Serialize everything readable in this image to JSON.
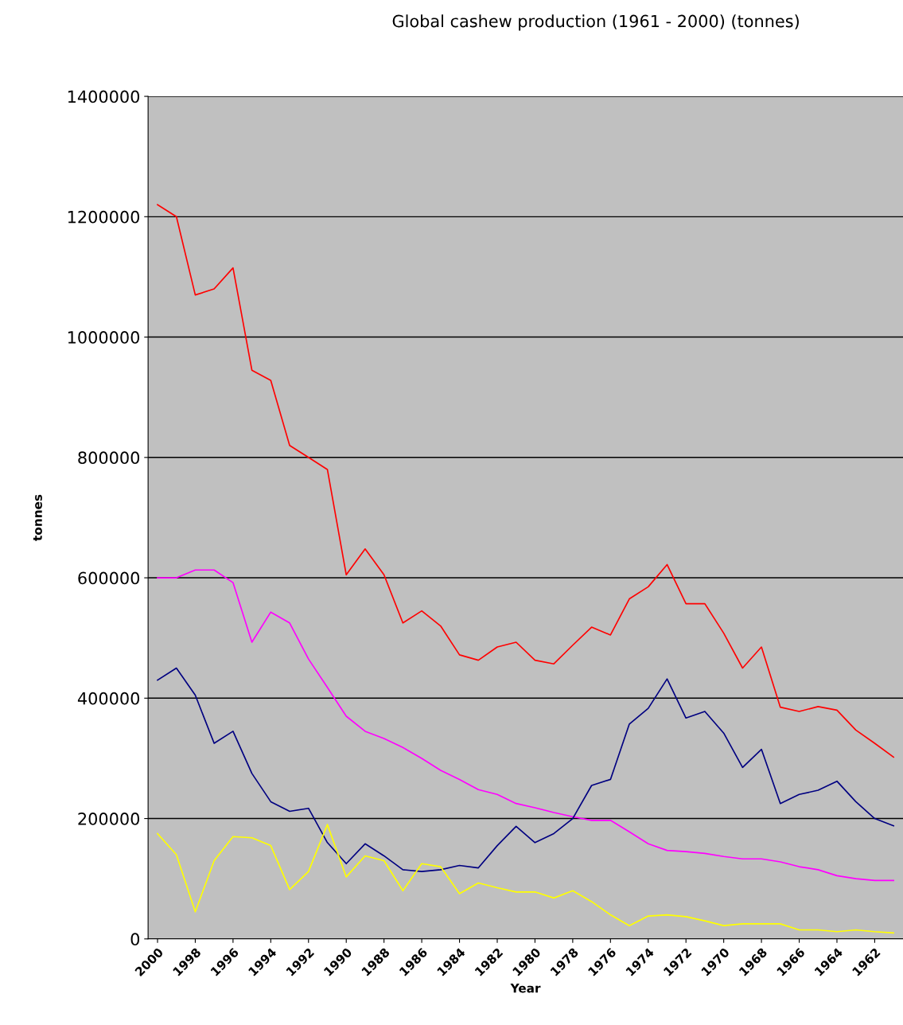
{
  "chart_data": {
    "type": "line",
    "title": "Global cashew production (1961 - 2000) (tonnes)",
    "xlabel": "Year",
    "ylabel": "tonnes",
    "categories": [
      "2000",
      null,
      "1998",
      null,
      "1996",
      null,
      "1994",
      null,
      "1992",
      null,
      "1990",
      null,
      "1988",
      null,
      "1986",
      null,
      "1984",
      null,
      "1982",
      null,
      "1980",
      null,
      "1978",
      null,
      "1976",
      null,
      "1974",
      null,
      "1972",
      null,
      "1970",
      null,
      "1968",
      null,
      "1966",
      null,
      "1964",
      null,
      "1962",
      null
    ],
    "series": [
      {
        "color": "#ff0000",
        "values": [
          1220000,
          1200000,
          1070000,
          1080000,
          1115000,
          945000,
          928000,
          820000,
          800000,
          780000,
          605000,
          648000,
          605000,
          525000,
          545000,
          520000,
          472000,
          463000,
          485000,
          493000,
          463000,
          457000,
          488000,
          518000,
          505000,
          565000,
          585000,
          622000,
          557000,
          557000,
          508000,
          450000,
          485000,
          385000,
          378000,
          386000,
          380000,
          347000,
          325000,
          302000
        ]
      },
      {
        "color": "#ff00ff",
        "values": [
          600000,
          600000,
          613000,
          613000,
          592000,
          493000,
          543000,
          525000,
          465000,
          418000,
          370000,
          345000,
          333000,
          318000,
          300000,
          280000,
          265000,
          248000,
          240000,
          225000,
          218000,
          210000,
          203000,
          197000,
          197000,
          178000,
          158000,
          147000,
          145000,
          142000,
          137000,
          133000,
          133000,
          128000,
          120000,
          115000,
          105000,
          100000,
          97000,
          97000
        ]
      },
      {
        "color": "#000080",
        "values": [
          430000,
          450000,
          405000,
          325000,
          345000,
          275000,
          228000,
          212000,
          217000,
          160000,
          125000,
          158000,
          138000,
          115000,
          112000,
          115000,
          122000,
          118000,
          155000,
          187000,
          160000,
          175000,
          200000,
          255000,
          265000,
          357000,
          383000,
          432000,
          367000,
          378000,
          342000,
          285000,
          315000,
          225000,
          240000,
          247000,
          262000,
          228000,
          200000,
          188000
        ]
      },
      {
        "color": "#ffff00",
        "values": [
          175000,
          140000,
          45000,
          130000,
          170000,
          168000,
          155000,
          82000,
          112000,
          190000,
          103000,
          138000,
          130000,
          80000,
          125000,
          120000,
          75000,
          93000,
          85000,
          78000,
          78000,
          68000,
          80000,
          62000,
          40000,
          22000,
          38000,
          40000,
          37000,
          30000,
          22000,
          25000,
          25000,
          25000,
          15000,
          15000,
          12000,
          15000,
          12000,
          10000
        ]
      }
    ],
    "ylim": [
      0,
      1400000
    ],
    "yticks": [
      0,
      200000,
      400000,
      600000,
      800000,
      1000000,
      1200000,
      1400000
    ],
    "grid": "y",
    "marker": "none",
    "line_style": "solid"
  }
}
